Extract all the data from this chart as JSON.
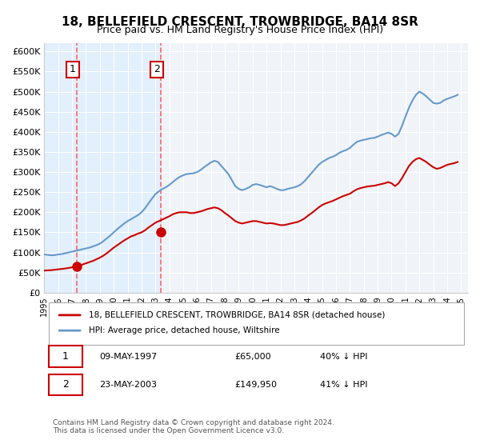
{
  "title": "18, BELLEFIELD CRESCENT, TROWBRIDGE, BA14 8SR",
  "subtitle": "Price paid vs. HM Land Registry's House Price Index (HPI)",
  "transactions": [
    {
      "date": "1997-05-09",
      "price": 65000,
      "label": "1"
    },
    {
      "date": "2003-05-23",
      "price": 149950,
      "label": "2"
    }
  ],
  "transaction_labels": [
    "1   09-MAY-1997          £65,000          40% ↓ HPI",
    "2   23-MAY-2003          £149,950          41% ↓ HPI"
  ],
  "legend_line1": "18, BELLEFIELD CRESCENT, TROWBRIDGE, BA14 8SR (detached house)",
  "legend_line2": "HPI: Average price, detached house, Wiltshire",
  "footer": "Contains HM Land Registry data © Crown copyright and database right 2024.\nThis data is licensed under the Open Government Licence v3.0.",
  "hpi_color": "#6699cc",
  "price_color": "#cc0000",
  "marker_color": "#cc0000",
  "shade_color": "#ddeeff",
  "dashed_color": "#ff6666",
  "ylim": [
    0,
    620000
  ],
  "yticks": [
    0,
    50000,
    100000,
    150000,
    200000,
    250000,
    300000,
    350000,
    400000,
    450000,
    500000,
    550000,
    600000
  ],
  "xstart": 1995.0,
  "xend": 2025.5,
  "background_color": "#ffffff",
  "plot_bg_color": "#f0f4f8",
  "hpi_data_years": [
    1995.0,
    1995.25,
    1995.5,
    1995.75,
    1996.0,
    1996.25,
    1996.5,
    1996.75,
    1997.0,
    1997.25,
    1997.5,
    1997.75,
    1998.0,
    1998.25,
    1998.5,
    1998.75,
    1999.0,
    1999.25,
    1999.5,
    1999.75,
    2000.0,
    2000.25,
    2000.5,
    2000.75,
    2001.0,
    2001.25,
    2001.5,
    2001.75,
    2002.0,
    2002.25,
    2002.5,
    2002.75,
    2003.0,
    2003.25,
    2003.5,
    2003.75,
    2004.0,
    2004.25,
    2004.5,
    2004.75,
    2005.0,
    2005.25,
    2005.5,
    2005.75,
    2006.0,
    2006.25,
    2006.5,
    2006.75,
    2007.0,
    2007.25,
    2007.5,
    2007.75,
    2008.0,
    2008.25,
    2008.5,
    2008.75,
    2009.0,
    2009.25,
    2009.5,
    2009.75,
    2010.0,
    2010.25,
    2010.5,
    2010.75,
    2011.0,
    2011.25,
    2011.5,
    2011.75,
    2012.0,
    2012.25,
    2012.5,
    2012.75,
    2013.0,
    2013.25,
    2013.5,
    2013.75,
    2014.0,
    2014.25,
    2014.5,
    2014.75,
    2015.0,
    2015.25,
    2015.5,
    2015.75,
    2016.0,
    2016.25,
    2016.5,
    2016.75,
    2017.0,
    2017.25,
    2017.5,
    2017.75,
    2018.0,
    2018.25,
    2018.5,
    2018.75,
    2019.0,
    2019.25,
    2019.5,
    2019.75,
    2020.0,
    2020.25,
    2020.5,
    2020.75,
    2021.0,
    2021.25,
    2021.5,
    2021.75,
    2022.0,
    2022.25,
    2022.5,
    2022.75,
    2023.0,
    2023.25,
    2023.5,
    2023.75,
    2024.0,
    2024.25,
    2024.5,
    2024.75
  ],
  "hpi_values": [
    95000,
    94000,
    93000,
    93500,
    95000,
    96000,
    98000,
    100000,
    102000,
    104000,
    106000,
    108000,
    110000,
    112000,
    115000,
    118000,
    122000,
    128000,
    135000,
    142000,
    150000,
    158000,
    165000,
    172000,
    178000,
    183000,
    188000,
    193000,
    200000,
    210000,
    222000,
    234000,
    245000,
    252000,
    258000,
    262000,
    268000,
    275000,
    282000,
    288000,
    292000,
    295000,
    296000,
    297000,
    300000,
    305000,
    312000,
    318000,
    324000,
    328000,
    325000,
    315000,
    305000,
    295000,
    280000,
    265000,
    258000,
    255000,
    258000,
    262000,
    268000,
    270000,
    268000,
    265000,
    262000,
    265000,
    262000,
    258000,
    255000,
    255000,
    258000,
    260000,
    262000,
    265000,
    270000,
    278000,
    288000,
    298000,
    308000,
    318000,
    325000,
    330000,
    335000,
    338000,
    342000,
    348000,
    352000,
    355000,
    360000,
    368000,
    375000,
    378000,
    380000,
    382000,
    384000,
    385000,
    388000,
    392000,
    395000,
    398000,
    395000,
    388000,
    395000,
    415000,
    438000,
    460000,
    478000,
    492000,
    500000,
    495000,
    488000,
    480000,
    472000,
    470000,
    472000,
    478000,
    482000,
    485000,
    488000,
    492000
  ],
  "price_data_years": [
    1995.0,
    1995.25,
    1995.5,
    1995.75,
    1996.0,
    1996.25,
    1996.5,
    1996.75,
    1997.0,
    1997.25,
    1997.5,
    1997.75,
    1998.0,
    1998.25,
    1998.5,
    1998.75,
    1999.0,
    1999.25,
    1999.5,
    1999.75,
    2000.0,
    2000.25,
    2000.5,
    2000.75,
    2001.0,
    2001.25,
    2001.5,
    2001.75,
    2002.0,
    2002.25,
    2002.5,
    2002.75,
    2003.0,
    2003.25,
    2003.5,
    2003.75,
    2004.0,
    2004.25,
    2004.5,
    2004.75,
    2005.0,
    2005.25,
    2005.5,
    2005.75,
    2006.0,
    2006.25,
    2006.5,
    2006.75,
    2007.0,
    2007.25,
    2007.5,
    2007.75,
    2008.0,
    2008.25,
    2008.5,
    2008.75,
    2009.0,
    2009.25,
    2009.5,
    2009.75,
    2010.0,
    2010.25,
    2010.5,
    2010.75,
    2011.0,
    2011.25,
    2011.5,
    2011.75,
    2012.0,
    2012.25,
    2012.5,
    2012.75,
    2013.0,
    2013.25,
    2013.5,
    2013.75,
    2014.0,
    2014.25,
    2014.5,
    2014.75,
    2015.0,
    2015.25,
    2015.5,
    2015.75,
    2016.0,
    2016.25,
    2016.5,
    2016.75,
    2017.0,
    2017.25,
    2017.5,
    2017.75,
    2018.0,
    2018.25,
    2018.5,
    2018.75,
    2019.0,
    2019.25,
    2019.5,
    2019.75,
    2020.0,
    2020.25,
    2020.5,
    2020.75,
    2021.0,
    2021.25,
    2021.5,
    2021.75,
    2022.0,
    2022.25,
    2022.5,
    2022.75,
    2023.0,
    2023.25,
    2023.5,
    2023.75,
    2024.0,
    2024.25,
    2024.5,
    2024.75
  ],
  "price_values": [
    55000,
    55500,
    56000,
    57000,
    58000,
    59000,
    60000,
    61500,
    63000,
    65000,
    67000,
    70000,
    73000,
    76000,
    79000,
    83000,
    87000,
    92000,
    98000,
    105000,
    112000,
    118000,
    124000,
    130000,
    135000,
    140000,
    143000,
    147000,
    150000,
    155000,
    162000,
    168000,
    174000,
    178000,
    182000,
    186000,
    190000,
    195000,
    198000,
    200000,
    200000,
    200000,
    198000,
    198000,
    200000,
    202000,
    205000,
    208000,
    210000,
    212000,
    210000,
    205000,
    198000,
    192000,
    185000,
    178000,
    174000,
    172000,
    174000,
    176000,
    178000,
    178000,
    176000,
    174000,
    172000,
    173000,
    172000,
    170000,
    168000,
    168000,
    170000,
    172000,
    174000,
    176000,
    180000,
    185000,
    192000,
    198000,
    205000,
    212000,
    218000,
    222000,
    225000,
    228000,
    232000,
    236000,
    240000,
    243000,
    246000,
    252000,
    257000,
    260000,
    262000,
    264000,
    265000,
    266000,
    268000,
    270000,
    272000,
    275000,
    272000,
    265000,
    272000,
    285000,
    300000,
    315000,
    325000,
    332000,
    335000,
    330000,
    325000,
    318000,
    312000,
    308000,
    310000,
    314000,
    318000,
    320000,
    322000,
    325000
  ]
}
